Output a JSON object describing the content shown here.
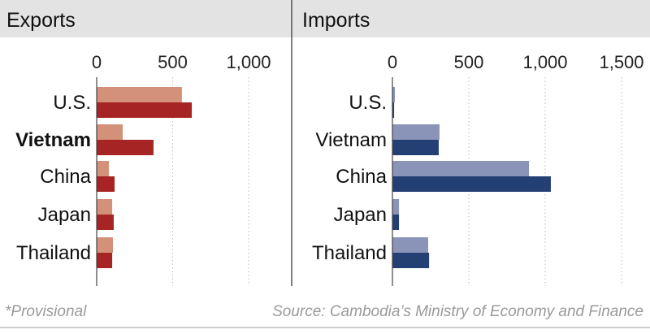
{
  "chart_data": [
    {
      "type": "bar",
      "orientation": "horizontal",
      "title": "Exports",
      "categories": [
        "U.S.",
        "Vietnam",
        "China",
        "Japan",
        "Thailand"
      ],
      "highlight_category": "Vietnam",
      "series": [
        {
          "name": "",
          "color": "#d4917a",
          "values": [
            561,
            171,
            80,
            102,
            107
          ]
        },
        {
          "name": "",
          "color": "#a62424",
          "values": [
            626,
            374,
            118,
            112,
            102
          ]
        }
      ],
      "xticks": [
        0,
        500,
        1000
      ],
      "xtick_labels": [
        "0",
        "500",
        "1,000"
      ],
      "xlim": [
        0,
        1300
      ],
      "grid": "vertical dotted"
    },
    {
      "type": "bar",
      "orientation": "horizontal",
      "title": "Imports",
      "categories": [
        "U.S.",
        "Vietnam",
        "China",
        "Japan",
        "Thailand"
      ],
      "series": [
        {
          "name": "",
          "color": "#8a93b8",
          "values": [
            16,
            308,
            894,
            43,
            234
          ]
        },
        {
          "name": "",
          "color": "#233f74",
          "values": [
            11,
            303,
            1037,
            43,
            240
          ]
        }
      ],
      "xticks": [
        0,
        500,
        1000,
        1500
      ],
      "xtick_labels": [
        "0",
        "500",
        "1,000",
        "1,500"
      ],
      "xlim": [
        0,
        1650
      ],
      "grid": "vertical dotted"
    }
  ],
  "footer": {
    "note": "*Provisional",
    "source": "Source: Cambodia’s Ministry of Economy and Finance"
  }
}
